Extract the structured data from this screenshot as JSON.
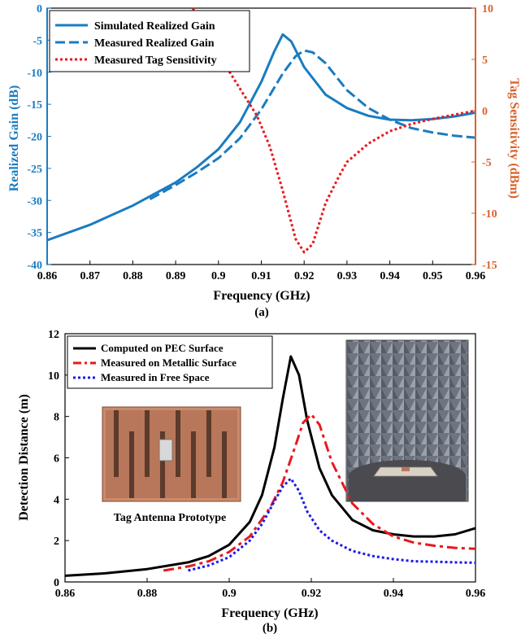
{
  "colors": {
    "blue": "#1a7cc0",
    "orange": "#d9622b",
    "red_dotted": "#e8191e",
    "black": "#000000",
    "red_dashdot": "#e8191e",
    "blue_dotted": "#1a1aeb"
  },
  "chart_data": [
    {
      "id": "a",
      "type": "line",
      "caption": "(a)",
      "xlabel": "Frequency (GHz)",
      "ylabel_left": "Realized Gain (dB)",
      "ylabel_right": "Tag Sensitivity (dBm)",
      "xlim": [
        0.86,
        0.96
      ],
      "ylim_left": [
        -40,
        0
      ],
      "ylim_right": [
        -15,
        10
      ],
      "xticks": [
        "0.86",
        "0.87",
        "0.88",
        "0.89",
        "0.9",
        "0.91",
        "0.92",
        "0.93",
        "0.94",
        "0.95",
        "0.96"
      ],
      "yticks_left": [
        "0",
        "-5",
        "-10",
        "-15",
        "-20",
        "-25",
        "-30",
        "-35",
        "-40"
      ],
      "yticks_right": [
        "10",
        "5",
        "0",
        "-5",
        "-10",
        "-15"
      ],
      "legend_position": "top-left",
      "series": [
        {
          "name": "Simulated Realized Gain",
          "axis": "left",
          "style": "solid",
          "x": [
            0.86,
            0.87,
            0.88,
            0.89,
            0.895,
            0.9,
            0.905,
            0.91,
            0.913,
            0.915,
            0.917,
            0.92,
            0.925,
            0.93,
            0.935,
            0.94,
            0.945,
            0.95,
            0.955,
            0.96
          ],
          "y": [
            -36.2,
            -33.8,
            -30.8,
            -27.2,
            -24.8,
            -22.0,
            -17.8,
            -11.5,
            -6.8,
            -4.1,
            -5.2,
            -9.2,
            -13.5,
            -15.6,
            -16.8,
            -17.4,
            -17.5,
            -17.3,
            -16.9,
            -16.3
          ]
        },
        {
          "name": "Measured Realized Gain",
          "axis": "left",
          "style": "dashdot",
          "x": [
            0.884,
            0.89,
            0.895,
            0.9,
            0.905,
            0.91,
            0.915,
            0.918,
            0.92,
            0.922,
            0.925,
            0.93,
            0.935,
            0.94,
            0.945,
            0.95,
            0.955,
            0.96
          ],
          "y": [
            -29.8,
            -27.6,
            -25.6,
            -23.4,
            -20.3,
            -15.8,
            -10.2,
            -7.5,
            -6.6,
            -6.9,
            -8.6,
            -12.8,
            -15.6,
            -17.4,
            -18.7,
            -19.4,
            -19.9,
            -20.2
          ]
        },
        {
          "name": "Measured Tag Sensitivity",
          "axis": "right",
          "style": "dotted",
          "x": [
            0.894,
            0.897,
            0.9,
            0.903,
            0.906,
            0.909,
            0.912,
            0.915,
            0.918,
            0.92,
            0.922,
            0.925,
            0.928,
            0.93,
            0.935,
            0.94,
            0.945,
            0.95,
            0.955,
            0.96
          ],
          "y": [
            10.0,
            7.8,
            5.5,
            3.5,
            1.5,
            -0.5,
            -3.5,
            -7.8,
            -12.5,
            -13.8,
            -13.0,
            -9.0,
            -6.5,
            -5.0,
            -3.2,
            -2.0,
            -1.3,
            -0.8,
            -0.4,
            0.0
          ]
        }
      ]
    },
    {
      "id": "b",
      "type": "line",
      "caption": "(b)",
      "xlabel": "Frequency (GHz)",
      "ylabel": "Detection Distance (m)",
      "xlim": [
        0.86,
        0.96
      ],
      "ylim": [
        0,
        12
      ],
      "xticks": [
        "0.86",
        "0.88",
        "0.9",
        "0.92",
        "0.94",
        "0.96"
      ],
      "yticks": [
        "0",
        "2",
        "4",
        "6",
        "8",
        "10",
        "12"
      ],
      "legend_position": "top-left",
      "series": [
        {
          "name": "Computed on PEC Surface",
          "style": "solid",
          "x": [
            0.86,
            0.87,
            0.88,
            0.89,
            0.895,
            0.9,
            0.905,
            0.908,
            0.911,
            0.913,
            0.915,
            0.917,
            0.919,
            0.922,
            0.925,
            0.93,
            0.935,
            0.94,
            0.945,
            0.95,
            0.955,
            0.96
          ],
          "y": [
            0.3,
            0.42,
            0.62,
            0.95,
            1.25,
            1.8,
            2.9,
            4.2,
            6.5,
            8.8,
            10.9,
            10.0,
            7.8,
            5.5,
            4.2,
            3.0,
            2.5,
            2.3,
            2.2,
            2.2,
            2.3,
            2.6
          ]
        },
        {
          "name": "Measured on Metallic Surface",
          "style": "dashdot",
          "x": [
            0.884,
            0.89,
            0.895,
            0.9,
            0.905,
            0.91,
            0.913,
            0.916,
            0.918,
            0.92,
            0.922,
            0.925,
            0.93,
            0.935,
            0.94,
            0.945,
            0.95,
            0.955,
            0.96
          ],
          "y": [
            0.55,
            0.75,
            1.0,
            1.45,
            2.2,
            3.6,
            4.8,
            6.5,
            7.7,
            8.1,
            7.6,
            5.8,
            3.8,
            2.8,
            2.2,
            1.9,
            1.75,
            1.65,
            1.6
          ]
        },
        {
          "name": "Measured in Free Space",
          "style": "dotted",
          "x": [
            0.89,
            0.895,
            0.9,
            0.905,
            0.908,
            0.911,
            0.913,
            0.915,
            0.917,
            0.919,
            0.922,
            0.925,
            0.93,
            0.935,
            0.94,
            0.945,
            0.95,
            0.955,
            0.96
          ],
          "y": [
            0.55,
            0.8,
            1.2,
            2.0,
            2.8,
            3.9,
            4.6,
            5.0,
            4.4,
            3.4,
            2.5,
            2.0,
            1.5,
            1.25,
            1.1,
            1.0,
            0.98,
            0.95,
            0.93
          ]
        }
      ],
      "inset_caption": "Tag Antenna Prototype"
    }
  ]
}
